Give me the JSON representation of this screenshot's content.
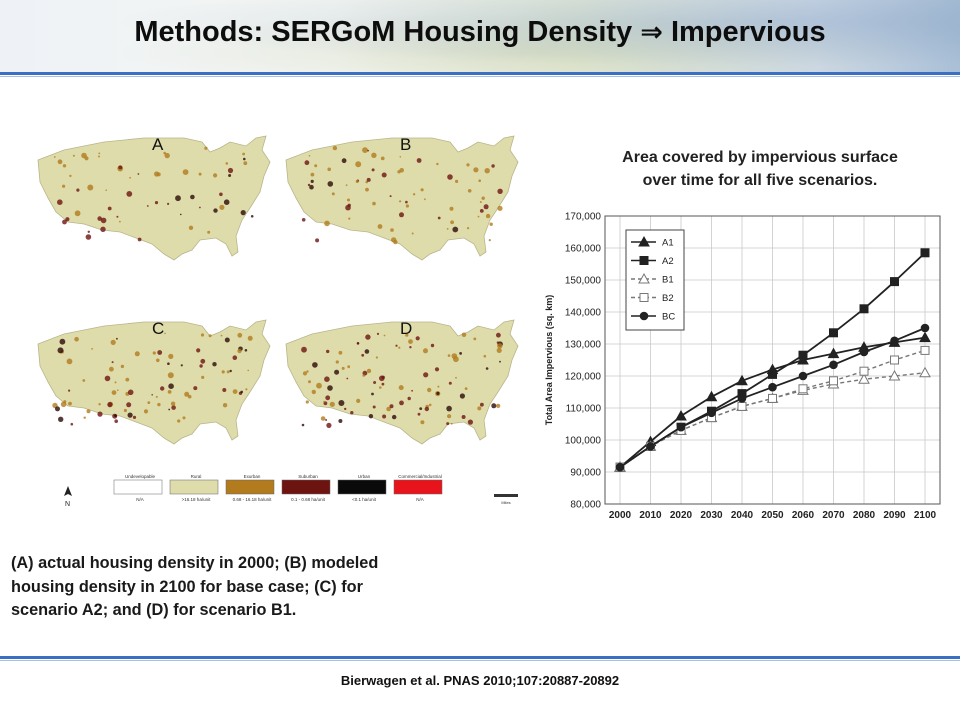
{
  "slide": {
    "title_prefix": "Methods: SERGoM Housing Density",
    "title_arrow": "⇒",
    "title_suffix": "Impervious",
    "caption_lines": [
      "(A) actual housing density in 2000; (B) modeled",
      "housing density in 2100 for base case; (C) for",
      "scenario A2; and (D) for scenario B1."
    ],
    "citation": "Bierwagen et al. PNAS 2010;107:20887-20892"
  },
  "maps": {
    "panel_labels": [
      "A",
      "B",
      "C",
      "D"
    ],
    "legend": [
      {
        "name": "Undevelopable",
        "range": "N/A",
        "color": "#ffffff"
      },
      {
        "name": "Rural",
        "range": ">16.18 ha/unit",
        "color": "#dedcab"
      },
      {
        "name": "Exurban",
        "range": "0.68 - 16.18 ha/unit",
        "color": "#b27c1e"
      },
      {
        "name": "Suburban",
        "range": "0.1 - 0.68 ha/unit",
        "color": "#6e1410"
      },
      {
        "name": "Urban",
        "range": "<0.1 ha/unit",
        "color": "#0a0a0a"
      },
      {
        "name": "Commercial/Industrial",
        "range": "N/A",
        "color": "#e8141b"
      }
    ],
    "north_label": "N",
    "scale_label": "Miles"
  },
  "chart_data": {
    "type": "line",
    "title": "Area covered by impervious surface over time for all five scenarios.",
    "title_lines": [
      "Area covered by impervious surface",
      "over time for all five scenarios."
    ],
    "xlabel": "",
    "ylabel": "Total Area Impervious (sq. km)",
    "categories": [
      "2000",
      "2010",
      "2020",
      "2030",
      "2040",
      "2050",
      "2060",
      "2070",
      "2080",
      "2090",
      "2100"
    ],
    "ylim": [
      80000,
      170000
    ],
    "yticks": [
      "80,000",
      "90,000",
      "100,000",
      "110,000",
      "120,000",
      "130,000",
      "140,000",
      "150,000",
      "160,000",
      "170,000"
    ],
    "grid": true,
    "legend_position": "top-left",
    "series": [
      {
        "name": "A1",
        "style": "solid",
        "marker": "triangle-filled",
        "values": [
          91500,
          99500,
          107500,
          113500,
          118500,
          122000,
          125000,
          127000,
          129000,
          130500,
          132000
        ]
      },
      {
        "name": "A2",
        "style": "solid",
        "marker": "square-filled",
        "values": [
          91500,
          98000,
          104000,
          109000,
          114500,
          120500,
          126500,
          133500,
          141000,
          149500,
          158500
        ]
      },
      {
        "name": "B1",
        "style": "dashed",
        "marker": "triangle-open",
        "values": [
          91500,
          98000,
          103000,
          107000,
          110500,
          113000,
          115500,
          117500,
          119000,
          120000,
          121000
        ]
      },
      {
        "name": "B2",
        "style": "dashed",
        "marker": "square-open",
        "values": [
          91500,
          98000,
          103000,
          107000,
          110500,
          113000,
          116000,
          118500,
          121500,
          125000,
          128000
        ]
      },
      {
        "name": "BC",
        "style": "solid",
        "marker": "circle-filled",
        "values": [
          91500,
          98000,
          104000,
          108500,
          113000,
          116500,
          120000,
          123500,
          127500,
          131000,
          135000
        ]
      }
    ]
  }
}
